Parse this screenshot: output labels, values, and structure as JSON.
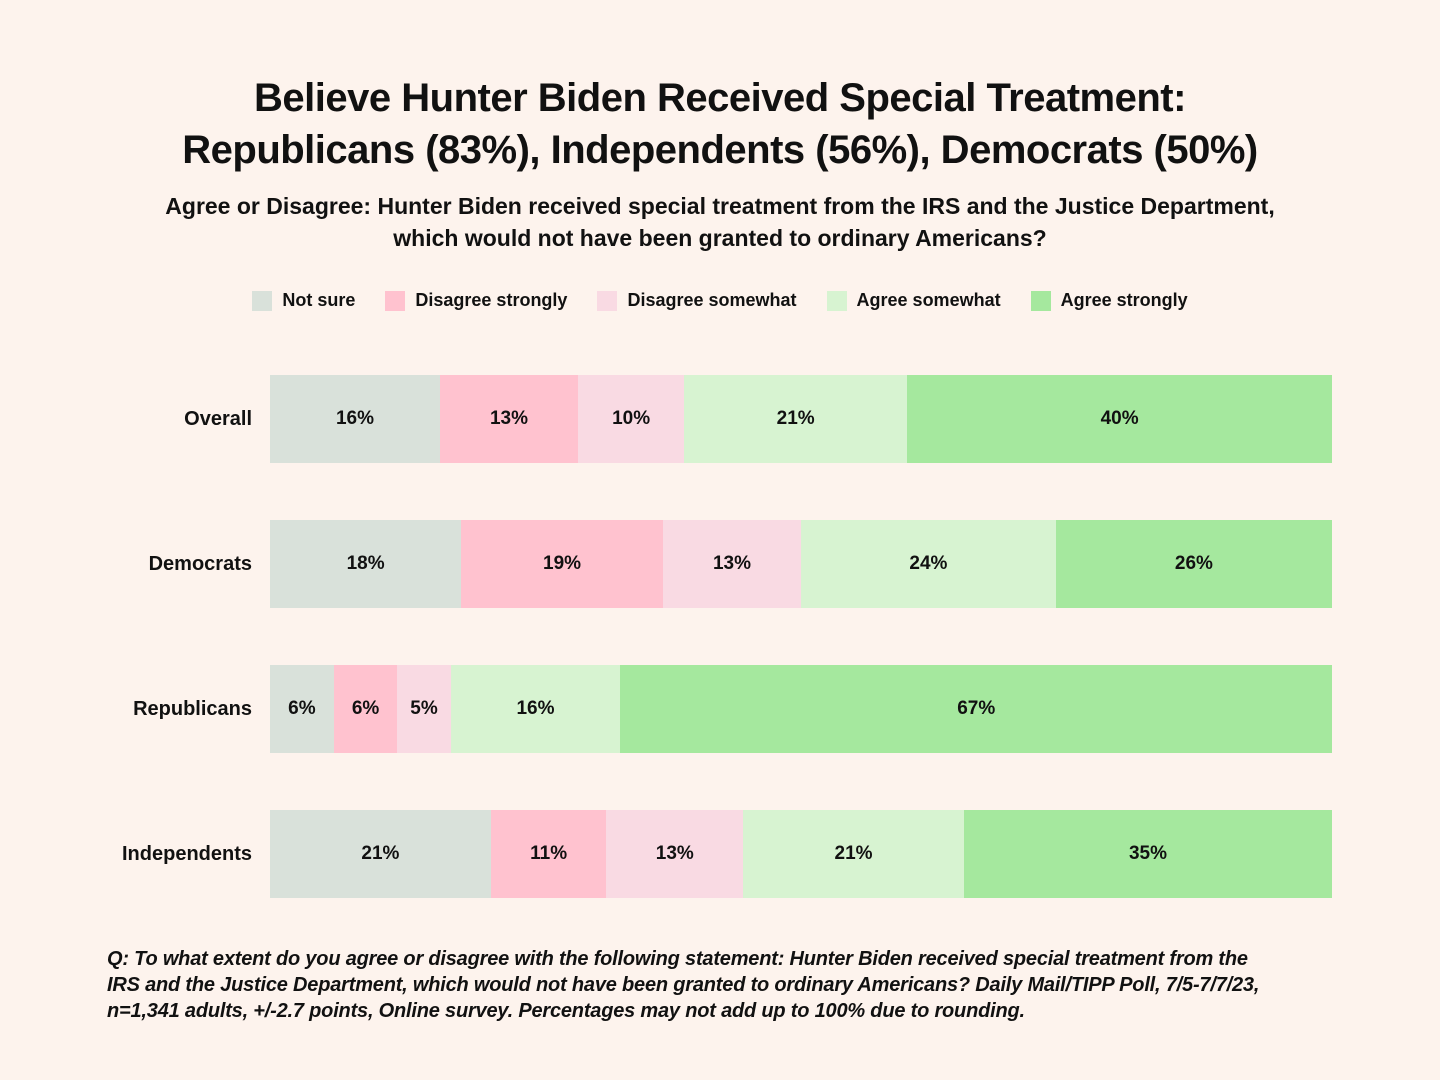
{
  "colors": {
    "background": "#fdf3ed",
    "text": "#111111"
  },
  "title_lines": [
    "Believe Hunter Biden Received Special Treatment:",
    "Republicans (83%), Independents (56%), Democrats (50%)"
  ],
  "subtitle_lines": [
    "Agree or Disagree: Hunter Biden received special treatment from the IRS and the Justice Department,",
    "which would not have been granted to ordinary Americans?"
  ],
  "chart_data": {
    "type": "bar",
    "variant": "100pct-stacked-horizontal",
    "orientation": "horizontal",
    "grid": false,
    "legend_position": "top",
    "value_suffix": "%",
    "categories": [
      "Overall",
      "Democrats",
      "Republicans",
      "Independents"
    ],
    "series": [
      {
        "name": "Not sure",
        "color": "#d9e1da",
        "values": [
          16,
          18,
          6,
          21
        ]
      },
      {
        "name": "Disagree strongly",
        "color": "#ffc2cf",
        "values": [
          13,
          19,
          6,
          11
        ]
      },
      {
        "name": "Disagree somewhat",
        "color": "#f9dae3",
        "values": [
          10,
          13,
          5,
          13
        ]
      },
      {
        "name": "Agree somewhat",
        "color": "#d7f3d1",
        "values": [
          21,
          24,
          16,
          21
        ]
      },
      {
        "name": "Agree strongly",
        "color": "#a5e89e",
        "values": [
          40,
          26,
          67,
          35
        ]
      }
    ]
  },
  "footnote_lines": [
    "Q: To what extent do you agree or disagree with the following statement: Hunter Biden received special treatment from the",
    "IRS and the Justice Department, which would not have been granted to ordinary Americans? Daily Mail/TIPP Poll, 7/5-7/7/23,",
    "n=1,341 adults, +/-2.7 points, Online survey.  Percentages may not add up to 100% due to rounding."
  ]
}
